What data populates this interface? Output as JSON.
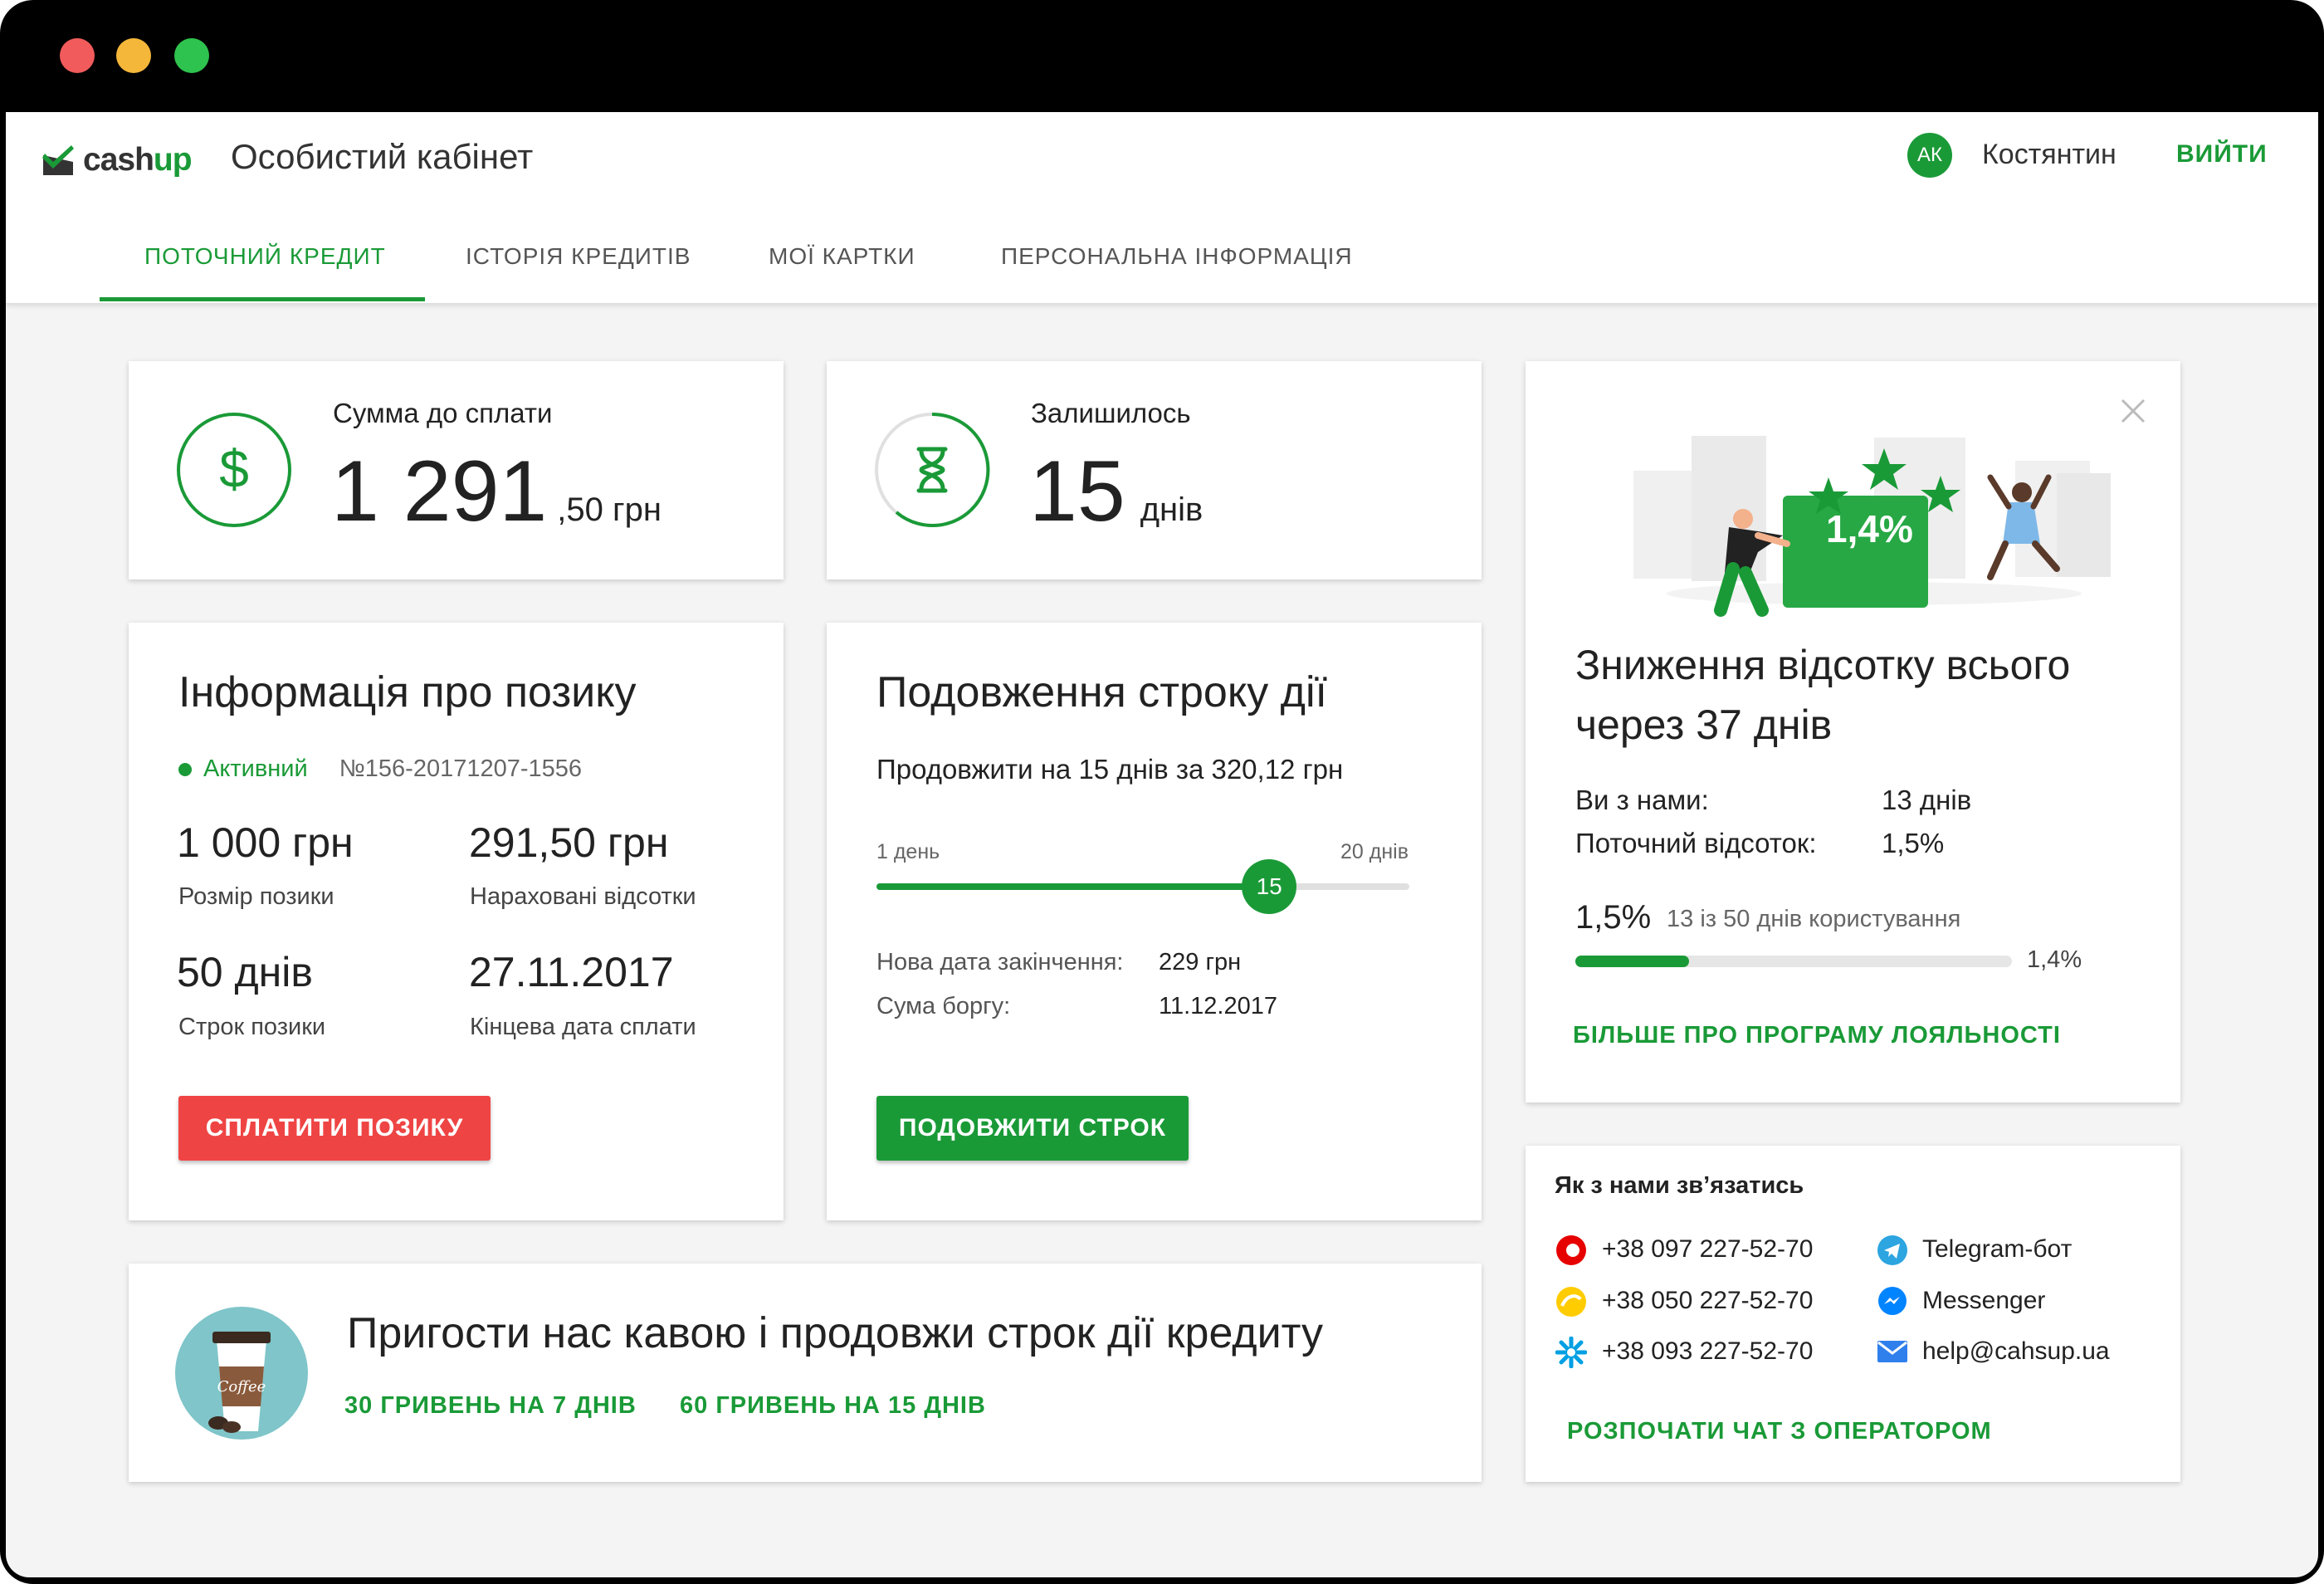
{
  "header": {
    "logo_text_a": "cash",
    "logo_text_b": "up",
    "title": "Особистий кабінет",
    "avatar_initials": "АК",
    "username": "Костянтин",
    "logout_label": "ВИЙТИ"
  },
  "tabs": [
    {
      "label": "ПОТОЧНИЙ КРЕДИТ",
      "active": true
    },
    {
      "label": "ІСТОРІЯ КРЕДИТІВ",
      "active": false
    },
    {
      "label": "МОЇ КАРТКИ",
      "active": false
    },
    {
      "label": "ПЕРСОНАЛЬНА ІНФОРМАЦІЯ",
      "active": false
    }
  ],
  "amount_card": {
    "label": "Сумма до сплати",
    "value": "1 291",
    "fraction": ",50 грн"
  },
  "remaining_card": {
    "label": "Залишилось",
    "value": "15",
    "unit": "днів"
  },
  "loan_info": {
    "title": "Інформація про позику",
    "status": "Активний",
    "number": "№156-20171207-1556",
    "amount": "1 000 грн",
    "amount_label": "Розмір позики",
    "interest": "291,50 грн",
    "interest_label": "Нараховані відсотки",
    "term": "50 днів",
    "term_label": "Строк позики",
    "end_date": "27.11.2017",
    "end_date_label": "Кінцева дата сплати",
    "pay_button": "СПЛАТИТИ ПОЗИКУ"
  },
  "extension": {
    "title": "Подовження строку дії",
    "subtitle": "Продовжити на 15 днів за 320,12 грн",
    "slider_min": "1 день",
    "slider_max": "20 днів",
    "slider_value": "15",
    "slider_fraction": 0.737,
    "new_date_label": "Нова дата закінчення:",
    "new_date_value": "229 грн",
    "debt_label": "Сума боргу:",
    "debt_value": "11.12.2017",
    "extend_button": "ПОДОВЖИТИ СТРОК"
  },
  "loyalty": {
    "badge": "1,4%",
    "title": "Зниження відсотку всього через 37 днів",
    "with_us_label": "Ви з нами:",
    "with_us_value": "13 днів",
    "current_rate_label": "Поточний відсоток:",
    "current_rate_value": "1,5%",
    "progress_rate": "1,5%",
    "progress_text": "13 із 50 днів користування",
    "progress_target": "1,4%",
    "progress_fraction": 0.26,
    "more_link": "БІЛЬШЕ ПРО ПРОГРАМУ ЛОЯЛЬНОСТІ"
  },
  "coffee": {
    "cup_label": "Coffee",
    "title": "Пригости нас кавою і продовжи строк дії кредиту",
    "option1": "30 ГРИВЕНЬ НА 7 ДНІВ",
    "option2": "60 ГРИВЕНЬ НА 15 ДНІВ"
  },
  "contacts": {
    "title": "Як з нами зв’язатись",
    "phone1": "+38 097 227-52-70",
    "phone2": "+38 050 227-52-70",
    "phone3": "+38 093 227-52-70",
    "telegram": "Telegram-бот",
    "messenger": "Messenger",
    "email": "help@cahsup.ua",
    "chat_link": "РОЗПОЧАТИ ЧАТ З ОПЕРАТОРОМ"
  },
  "colors": {
    "accent": "#1a9a37",
    "danger": "#ef4444"
  }
}
